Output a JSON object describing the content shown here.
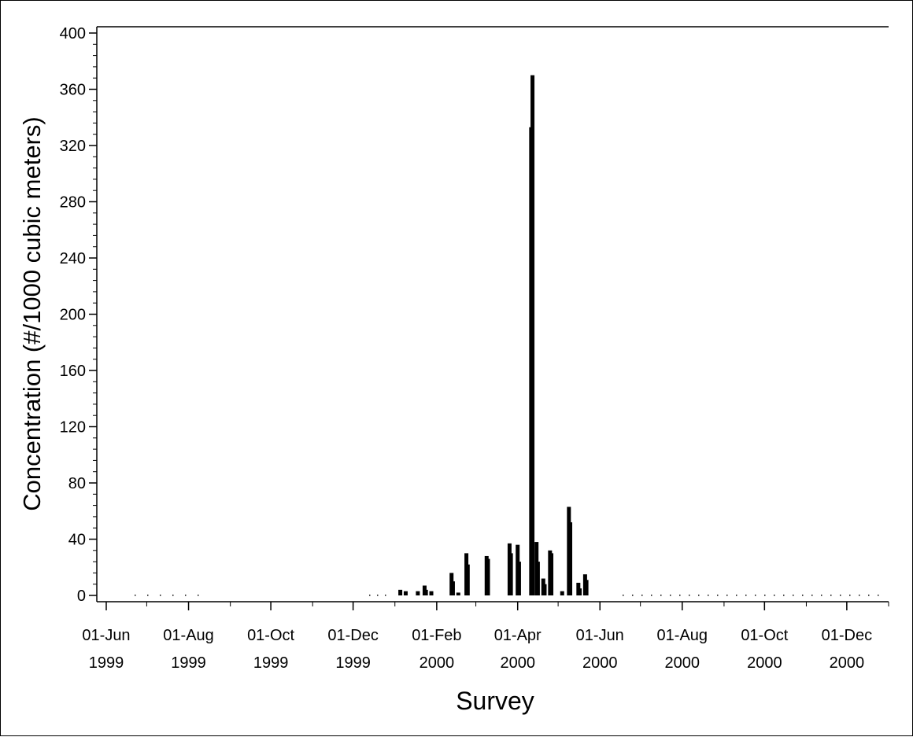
{
  "chart_data": {
    "type": "bar",
    "title": "",
    "xlabel": "Survey",
    "ylabel": "Concentration (#/1000 cubic meters)",
    "ylim": [
      0,
      400
    ],
    "yticks": [
      0,
      40,
      80,
      120,
      160,
      200,
      240,
      280,
      320,
      360,
      400
    ],
    "xlim": [
      "1999-05-25",
      "2001-01-01"
    ],
    "xticks": [
      {
        "date": "1999-06-01",
        "line1": "01-Jun",
        "line2": "1999"
      },
      {
        "date": "1999-08-01",
        "line1": "01-Aug",
        "line2": "1999"
      },
      {
        "date": "1999-10-01",
        "line1": "01-Oct",
        "line2": "1999"
      },
      {
        "date": "1999-12-01",
        "line1": "01-Dec",
        "line2": "1999"
      },
      {
        "date": "2000-02-01",
        "line1": "01-Feb",
        "line2": "2000"
      },
      {
        "date": "2000-04-01",
        "line1": "01-Apr",
        "line2": "2000"
      },
      {
        "date": "2000-06-01",
        "line1": "01-Jun",
        "line2": "2000"
      },
      {
        "date": "2000-08-01",
        "line1": "01-Aug",
        "line2": "2000"
      },
      {
        "date": "2000-10-01",
        "line1": "01-Oct",
        "line2": "2000"
      },
      {
        "date": "2000-12-01",
        "line1": "01-Dec",
        "line2": "2000"
      }
    ],
    "grid": false,
    "legend": "none",
    "bar_color": "#000000",
    "points": [
      {
        "date": "2000-01-05",
        "value": 4
      },
      {
        "date": "2000-01-09",
        "value": 3
      },
      {
        "date": "2000-01-18",
        "value": 3
      },
      {
        "date": "2000-01-23",
        "value": 7
      },
      {
        "date": "2000-01-24",
        "value": 4
      },
      {
        "date": "2000-01-28",
        "value": 3
      },
      {
        "date": "2000-02-12",
        "value": 16
      },
      {
        "date": "2000-02-13",
        "value": 10
      },
      {
        "date": "2000-02-17",
        "value": 2
      },
      {
        "date": "2000-02-23",
        "value": 30
      },
      {
        "date": "2000-02-24",
        "value": 22
      },
      {
        "date": "2000-03-09",
        "value": 28
      },
      {
        "date": "2000-03-10",
        "value": 26
      },
      {
        "date": "2000-03-26",
        "value": 37
      },
      {
        "date": "2000-03-27",
        "value": 30
      },
      {
        "date": "2000-04-01",
        "value": 36
      },
      {
        "date": "2000-04-02",
        "value": 24
      },
      {
        "date": "2000-04-11",
        "value": 333
      },
      {
        "date": "2000-04-12",
        "value": 370
      },
      {
        "date": "2000-04-15",
        "value": 38
      },
      {
        "date": "2000-04-16",
        "value": 24
      },
      {
        "date": "2000-04-20",
        "value": 12
      },
      {
        "date": "2000-04-21",
        "value": 8
      },
      {
        "date": "2000-04-25",
        "value": 32
      },
      {
        "date": "2000-04-26",
        "value": 30
      },
      {
        "date": "2000-05-04",
        "value": 3
      },
      {
        "date": "2000-05-09",
        "value": 63
      },
      {
        "date": "2000-05-10",
        "value": 52
      },
      {
        "date": "2000-05-16",
        "value": 9
      },
      {
        "date": "2000-05-17",
        "value": 5
      },
      {
        "date": "2000-05-21",
        "value": 15
      },
      {
        "date": "2000-05-22",
        "value": 11
      }
    ]
  }
}
